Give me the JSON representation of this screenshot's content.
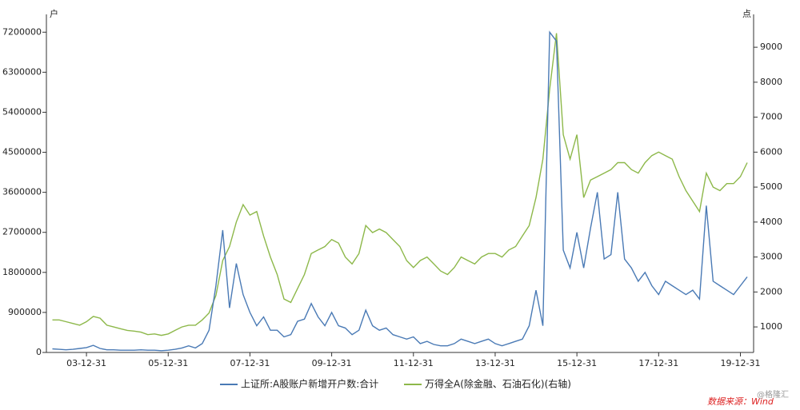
{
  "chart_data": {
    "type": "line",
    "categories": [
      null,
      null,
      null,
      null,
      null,
      "03-12-31",
      null,
      null,
      null,
      null,
      null,
      null,
      null,
      null,
      null,
      null,
      null,
      "05-12-31",
      null,
      null,
      null,
      null,
      null,
      null,
      null,
      null,
      null,
      null,
      null,
      "07-12-31",
      null,
      null,
      null,
      null,
      null,
      null,
      null,
      null,
      null,
      null,
      null,
      "09-12-31",
      null,
      null,
      null,
      null,
      null,
      null,
      null,
      null,
      null,
      null,
      null,
      "11-12-31",
      null,
      null,
      null,
      null,
      null,
      null,
      null,
      null,
      null,
      null,
      null,
      "13-12-31",
      null,
      null,
      null,
      null,
      null,
      null,
      null,
      null,
      null,
      null,
      null,
      "15-12-31",
      null,
      null,
      null,
      null,
      null,
      null,
      null,
      null,
      null,
      null,
      null,
      "17-12-31",
      null,
      null,
      null,
      null,
      null,
      null,
      null,
      null,
      null,
      null,
      null,
      "19-12-31",
      null
    ],
    "series": [
      {
        "name": "上证所:A股账户新增开户数:合计",
        "color": "#4a7ab5",
        "axis": "y",
        "values": [
          80000,
          70000,
          60000,
          70000,
          90000,
          110000,
          160000,
          90000,
          60000,
          60000,
          50000,
          50000,
          50000,
          60000,
          50000,
          50000,
          40000,
          50000,
          70000,
          100000,
          150000,
          100000,
          200000,
          500000,
          1500000,
          2750000,
          1000000,
          2000000,
          1300000,
          900000,
          600000,
          800000,
          500000,
          500000,
          350000,
          400000,
          700000,
          750000,
          1100000,
          800000,
          600000,
          900000,
          600000,
          550000,
          400000,
          500000,
          950000,
          600000,
          500000,
          550000,
          400000,
          350000,
          300000,
          350000,
          200000,
          250000,
          180000,
          150000,
          150000,
          200000,
          300000,
          250000,
          200000,
          250000,
          300000,
          200000,
          150000,
          200000,
          250000,
          300000,
          600000,
          1400000,
          600000,
          7200000,
          7000000,
          2300000,
          1900000,
          2700000,
          1900000,
          2800000,
          3600000,
          2100000,
          2200000,
          3600000,
          2100000,
          1900000,
          1600000,
          1800000,
          1500000,
          1300000,
          1600000,
          1500000,
          1400000,
          1300000,
          1400000,
          1200000,
          3300000,
          1600000,
          1500000,
          1400000,
          1300000,
          1500000,
          1700000
        ]
      },
      {
        "name": "万得全A(除金融、石油石化)(右轴)",
        "color": "#8db84a",
        "axis": "y2",
        "values": [
          1200,
          1200,
          1150,
          1100,
          1050,
          1150,
          1300,
          1250,
          1050,
          1000,
          950,
          900,
          880,
          850,
          780,
          800,
          760,
          800,
          900,
          1000,
          1050,
          1050,
          1200,
          1400,
          1900,
          2900,
          3300,
          4000,
          4500,
          4200,
          4300,
          3600,
          3000,
          2500,
          1800,
          1700,
          2100,
          2500,
          3100,
          3200,
          3300,
          3500,
          3400,
          3000,
          2800,
          3100,
          3900,
          3700,
          3800,
          3700,
          3500,
          3300,
          2900,
          2700,
          2900,
          3000,
          2800,
          2600,
          2500,
          2700,
          3000,
          2900,
          2800,
          3000,
          3100,
          3100,
          3000,
          3200,
          3300,
          3600,
          3900,
          4700,
          5800,
          7800,
          9400,
          6500,
          5800,
          6500,
          4700,
          5200,
          5300,
          5400,
          5500,
          5700,
          5700,
          5500,
          5400,
          5700,
          5900,
          6000,
          5900,
          5800,
          5300,
          4900,
          4600,
          4300,
          5400,
          5000,
          4900,
          5100,
          5100,
          5300,
          5700
        ]
      }
    ],
    "ylim": [
      0,
      7600000
    ],
    "yticks": [
      0,
      900000,
      1800000,
      2700000,
      3600000,
      4500000,
      5400000,
      6300000,
      7200000
    ],
    "y2lim": [
      270,
      9940
    ],
    "y2ticks": [
      1000,
      2000,
      3000,
      4000,
      5000,
      6000,
      7000,
      8000,
      9000
    ],
    "y_unit": "户",
    "y2_unit": "点",
    "source": "数据来源：Wind",
    "watermark": "@格隆汇"
  }
}
